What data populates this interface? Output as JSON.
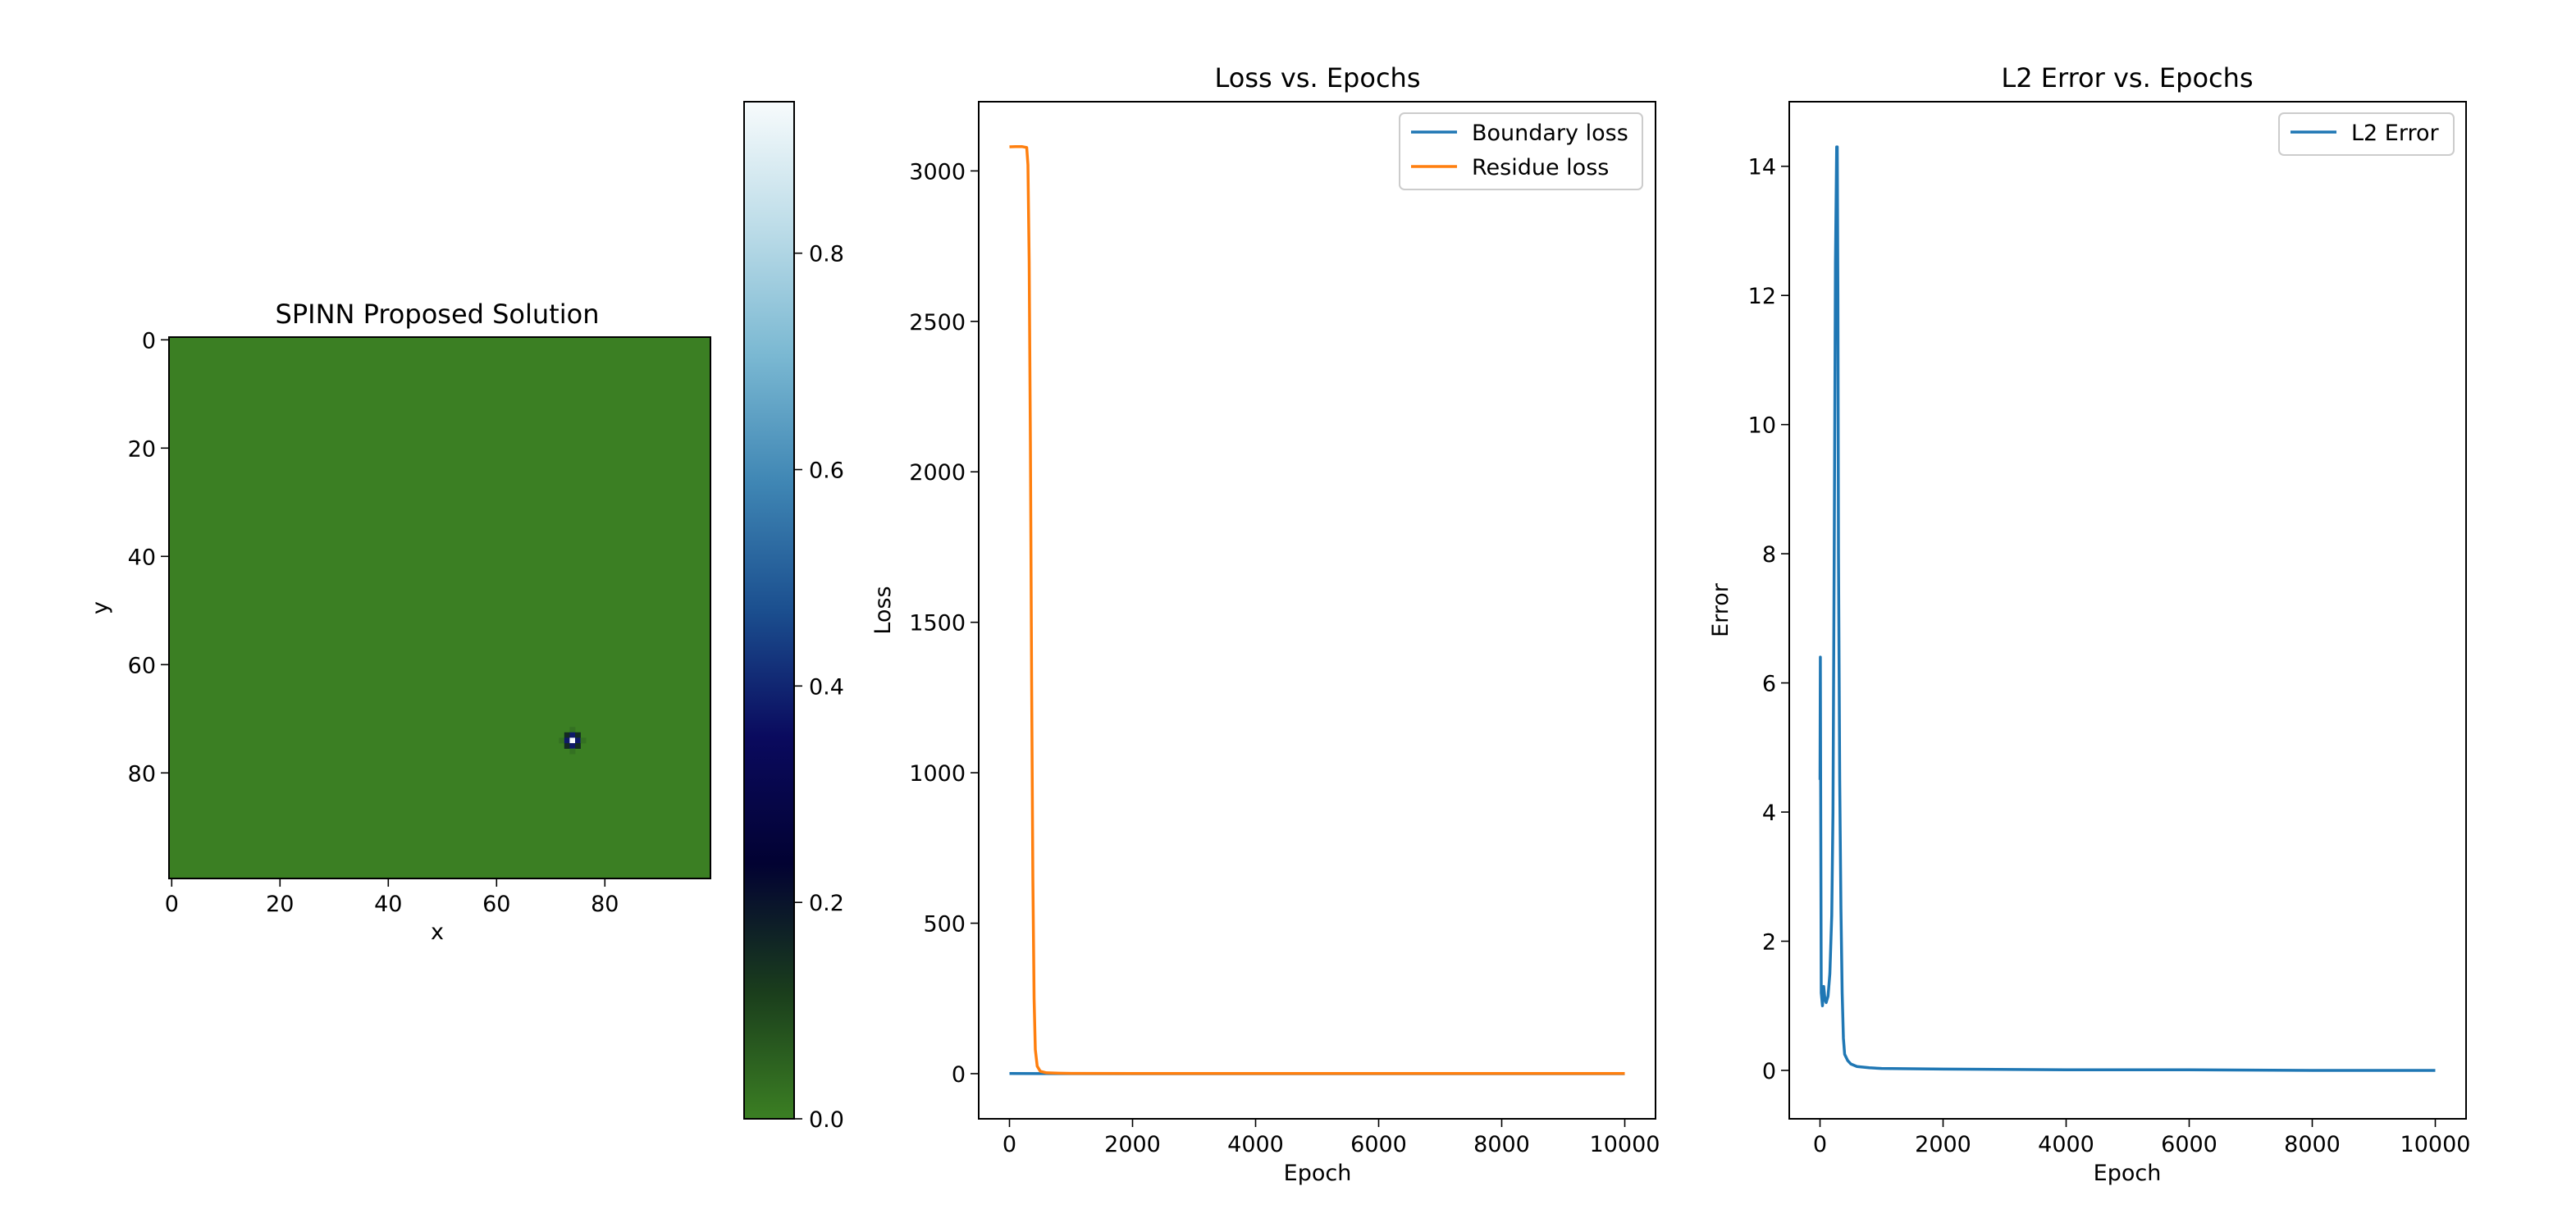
{
  "chart_data": [
    {
      "type": "heatmap",
      "title": "SPINN Proposed Solution",
      "xlabel": "x",
      "ylabel": "y",
      "grid_size": [
        100,
        100
      ],
      "background_value": 0.0,
      "peak": {
        "x": 74.5,
        "y": 74.5,
        "value": 0.94
      },
      "xticks": [
        0,
        20,
        40,
        60,
        80
      ],
      "yticks": [
        0,
        20,
        40,
        60,
        80
      ],
      "colorbar": {
        "ticks": [
          0.0,
          0.2,
          0.4,
          0.6,
          0.8
        ],
        "tick_labels": [
          "0.0",
          "0.2",
          "0.4",
          "0.6",
          "0.8"
        ],
        "range": [
          0.0,
          0.94
        ],
        "colors": [
          "#3b7f23",
          "#1a3d1c",
          "#020232",
          "#0a0a5e",
          "#1b4f8f",
          "#3f86b4",
          "#7ab8d2",
          "#bcdce8",
          "#f7fbfc"
        ]
      }
    },
    {
      "type": "line",
      "title": "Loss vs. Epochs",
      "xlabel": "Epoch",
      "ylabel": "Loss",
      "xlim": [
        -500,
        10500
      ],
      "ylim": [
        -150,
        3230
      ],
      "xticks": [
        0,
        2000,
        4000,
        6000,
        8000,
        10000
      ],
      "yticks": [
        0,
        500,
        1000,
        1500,
        2000,
        2500,
        3000
      ],
      "legend": "top-right",
      "series": [
        {
          "name": "Boundary loss",
          "color": "#1f77b4",
          "x": [
            0,
            2000,
            4000,
            6000,
            8000,
            10000
          ],
          "y": [
            0.5,
            0.01,
            0.01,
            0.01,
            0.01,
            0.01
          ]
        },
        {
          "name": "Residue loss",
          "color": "#ff7f0e",
          "x": [
            0,
            100,
            200,
            280,
            300,
            320,
            340,
            360,
            380,
            400,
            420,
            450,
            500,
            600,
            800,
            1000,
            2000,
            4000,
            6000,
            8000,
            10000
          ],
          "y": [
            3080,
            3081,
            3081,
            3078,
            3020,
            2700,
            2100,
            1300,
            650,
            250,
            80,
            25,
            8,
            3,
            1.5,
            1,
            0.5,
            0.5,
            0.5,
            0.5,
            0.5
          ]
        }
      ]
    },
    {
      "type": "line",
      "title": "L2 Error vs. Epochs",
      "xlabel": "Epoch",
      "ylabel": "Error",
      "xlim": [
        -500,
        10500
      ],
      "ylim": [
        -0.75,
        15.0
      ],
      "xticks": [
        0,
        2000,
        4000,
        6000,
        8000,
        10000
      ],
      "yticks": [
        0,
        2,
        4,
        6,
        8,
        10,
        12,
        14
      ],
      "legend": "top-right",
      "series": [
        {
          "name": "L2 Error",
          "color": "#1f77b4",
          "x": [
            0,
            5,
            10,
            20,
            40,
            60,
            80,
            100,
            130,
            160,
            190,
            210,
            230,
            250,
            270,
            280,
            290,
            300,
            320,
            340,
            360,
            380,
            400,
            450,
            500,
            600,
            800,
            1000,
            2000,
            4000,
            6000,
            8000,
            10000
          ],
          "y": [
            4.5,
            6.4,
            4.3,
            1.2,
            1.0,
            1.3,
            1.1,
            1.05,
            1.15,
            1.5,
            2.4,
            4.0,
            8.0,
            12.5,
            14.3,
            14.3,
            12.0,
            8.0,
            4.5,
            2.5,
            1.2,
            0.5,
            0.25,
            0.15,
            0.1,
            0.06,
            0.04,
            0.03,
            0.02,
            0.01,
            0.01,
            0.0,
            0.0
          ]
        }
      ]
    }
  ]
}
